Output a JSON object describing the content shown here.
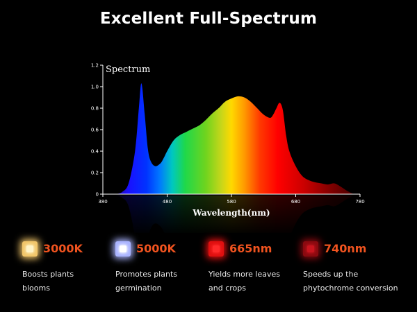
{
  "title": "Excellent Full-Spectrum",
  "chart_data": {
    "type": "area",
    "title": "Spectrum",
    "xlabel": "Wavelength(nm)",
    "ylabel": "",
    "xlim": [
      380,
      780
    ],
    "ylim": [
      0,
      1.2
    ],
    "xticks": [
      "380",
      "480",
      "580",
      "680",
      "780"
    ],
    "yticks": [
      "0",
      "0.2",
      "0.4",
      "0.6",
      "0.8",
      "1.0",
      "1.2"
    ],
    "grid": false,
    "x": [
      400,
      410,
      420,
      430,
      436,
      440,
      445,
      450,
      455,
      462,
      470,
      475,
      480,
      490,
      500,
      510,
      520,
      530,
      540,
      550,
      560,
      570,
      580,
      590,
      600,
      610,
      620,
      630,
      640,
      645,
      650,
      655,
      660,
      665,
      670,
      680,
      690,
      700,
      710,
      720,
      730,
      740,
      750,
      760,
      770
    ],
    "values": [
      0.0,
      0.02,
      0.1,
      0.4,
      0.8,
      1.03,
      0.75,
      0.42,
      0.3,
      0.26,
      0.29,
      0.34,
      0.4,
      0.5,
      0.55,
      0.58,
      0.61,
      0.64,
      0.69,
      0.75,
      0.8,
      0.86,
      0.89,
      0.91,
      0.9,
      0.86,
      0.8,
      0.74,
      0.71,
      0.74,
      0.8,
      0.85,
      0.78,
      0.55,
      0.4,
      0.26,
      0.17,
      0.13,
      0.11,
      0.1,
      0.09,
      0.1,
      0.07,
      0.03,
      0.0
    ]
  },
  "features": [
    {
      "title": "3000K",
      "desc": [
        "Boosts plants",
        "blooms"
      ],
      "color": "#fff4c8",
      "glow": "#f2c66a"
    },
    {
      "title": "5000K",
      "desc": [
        "Promotes plants",
        "germination"
      ],
      "color": "#ffffff",
      "glow": "#aab4ff"
    },
    {
      "title": "665nm",
      "desc": [
        "Yields more leaves",
        "and crops"
      ],
      "color": "#ff2a2a",
      "glow": "#e01010"
    },
    {
      "title": "740nm",
      "desc": [
        "Speeds up the",
        "phytochrome conversion"
      ],
      "color": "#c8141e",
      "glow": "#8a0a10"
    }
  ]
}
